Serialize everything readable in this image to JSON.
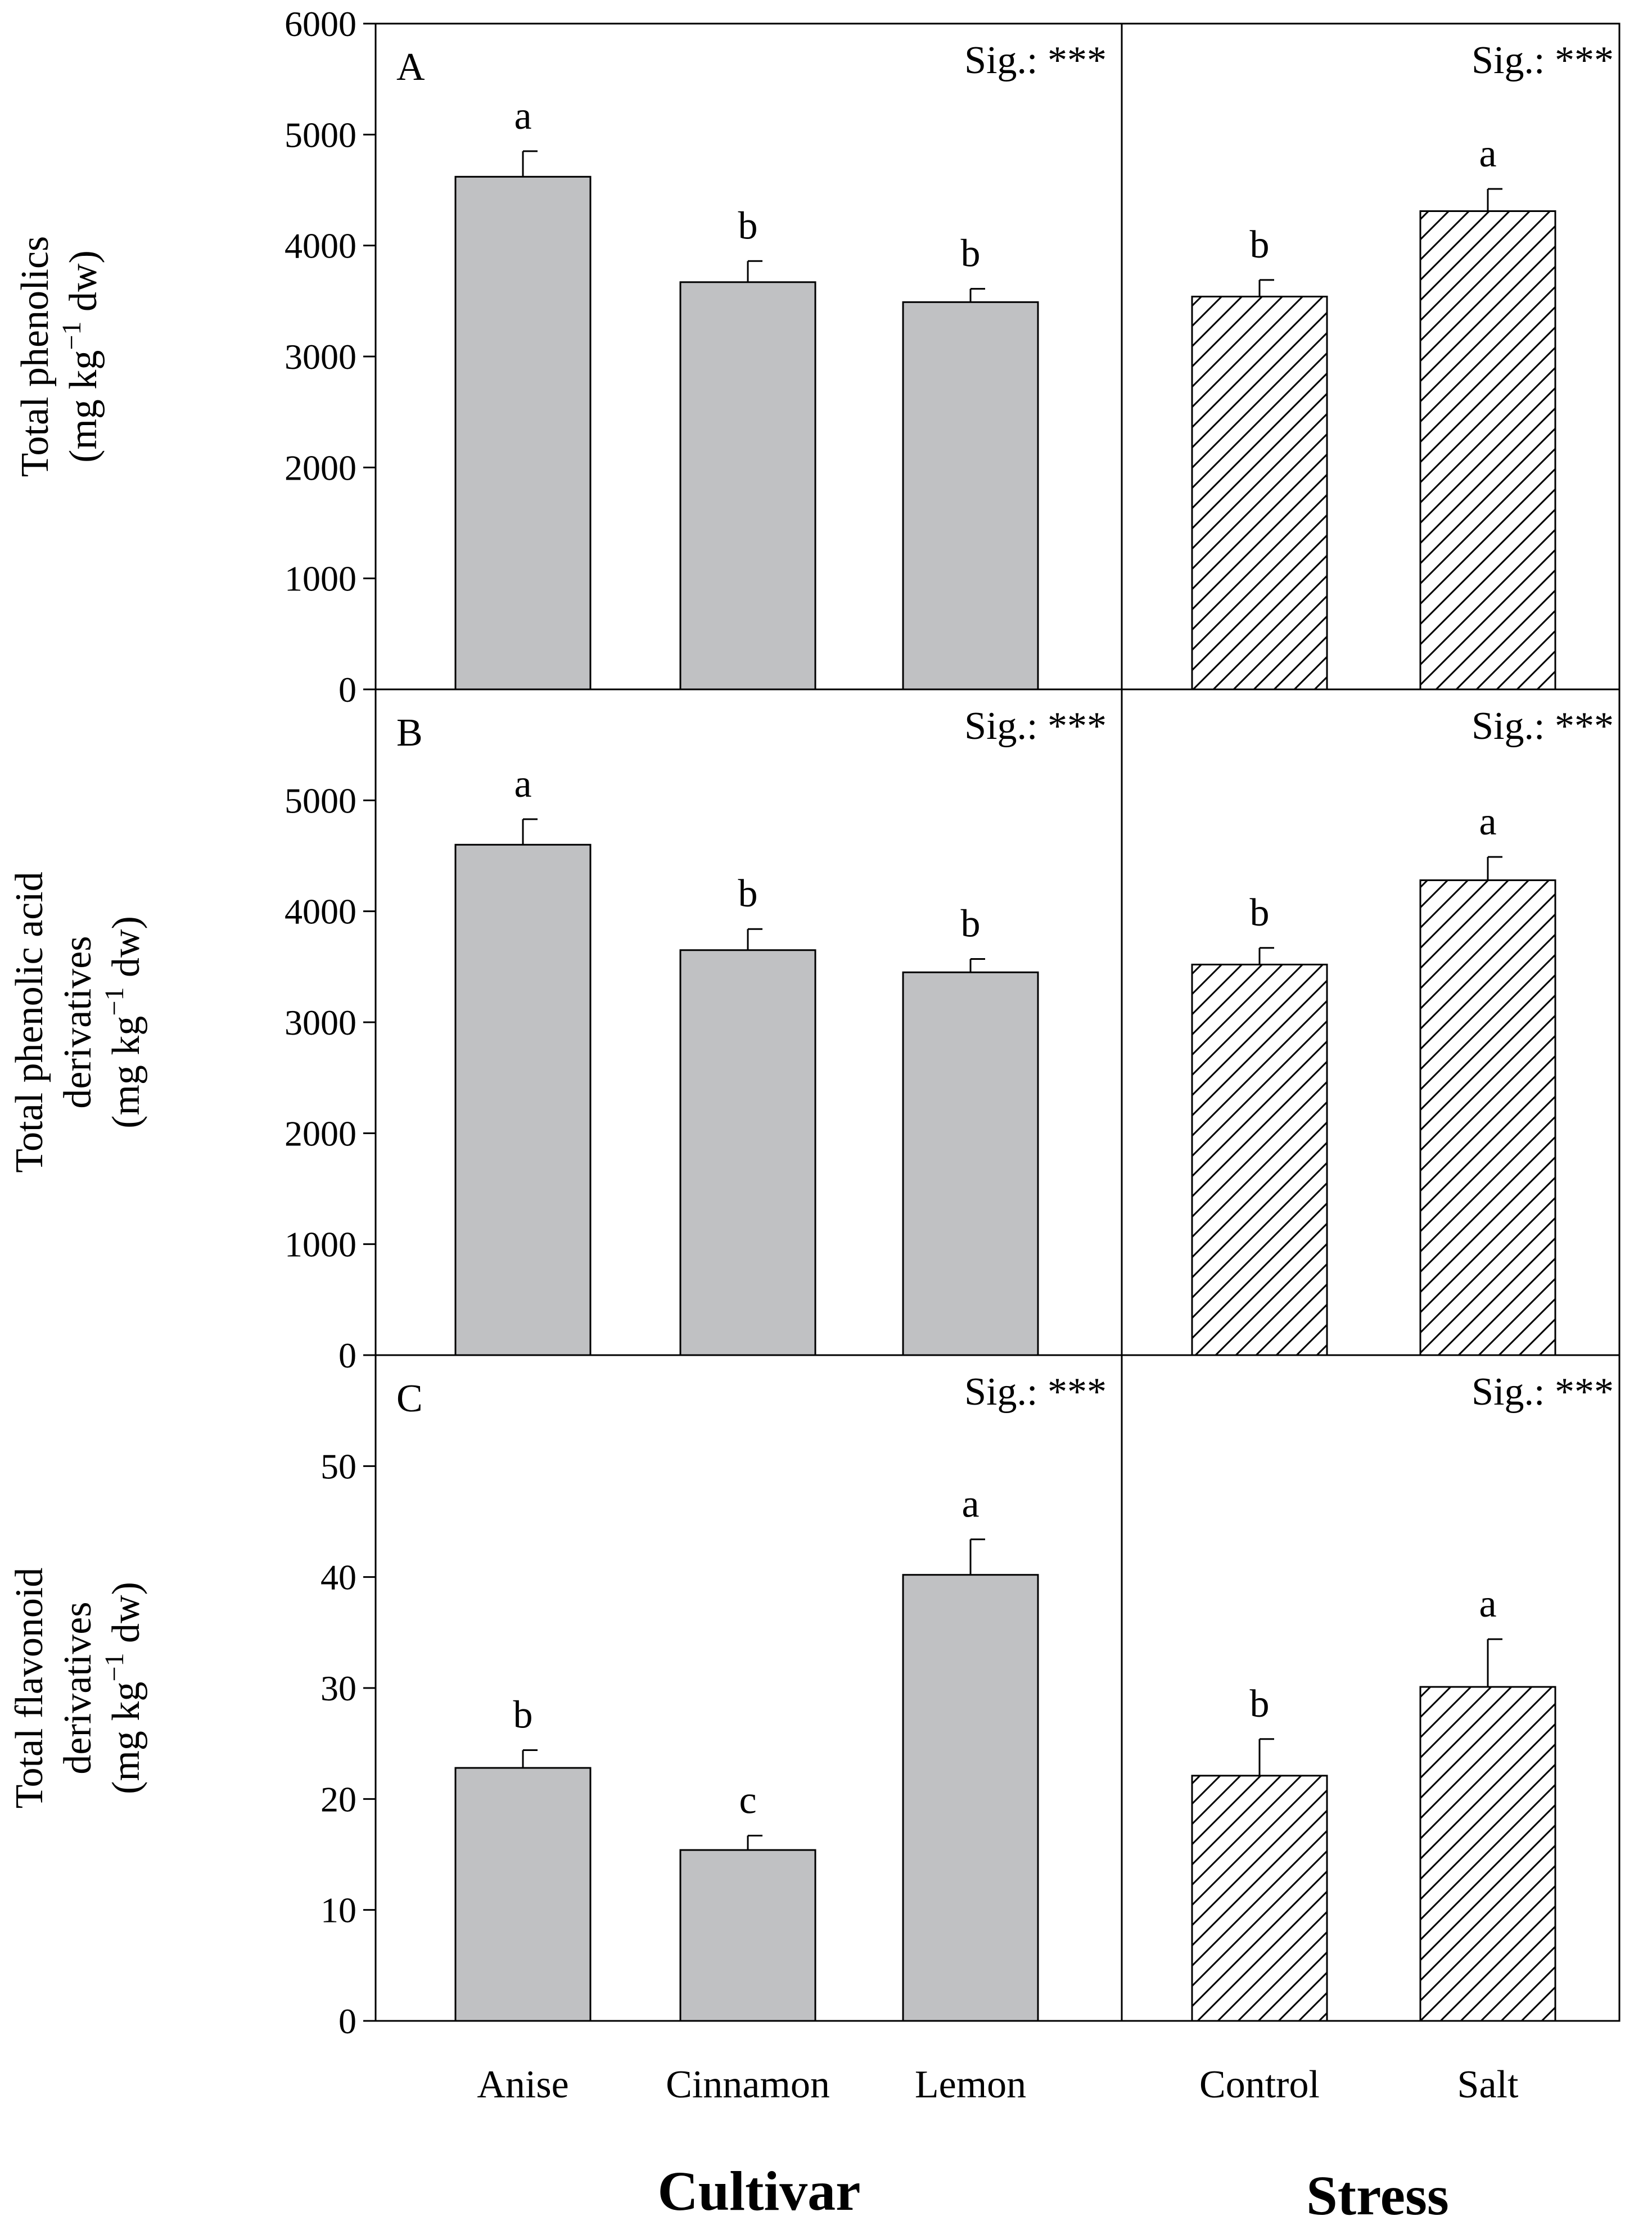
{
  "chart_data": {
    "type": "bar",
    "group_titles": [
      "Cultivar",
      "Stress"
    ],
    "groups": [
      {
        "title": "Cultivar",
        "categories": [
          "Anise",
          "Cinnamon",
          "Lemon"
        ],
        "fill": "solid"
      },
      {
        "title": "Stress",
        "categories": [
          "Control",
          "Salt"
        ],
        "fill": "hatched"
      }
    ],
    "colors": {
      "bar_fill": "#c0c1c3",
      "hatch": "#000000",
      "stroke": "#000000"
    },
    "panels": [
      {
        "label": "A",
        "ylabel": [
          "Total phenolics"
        ],
        "ylabel_units": "(mg kg",
        "ylabel_exp": "−1",
        "ylabel_tail": " dw)",
        "ylim": [
          0,
          6000
        ],
        "yticks": [
          "0",
          "1000",
          "2000",
          "3000",
          "4000",
          "5000",
          "6000"
        ],
        "sig_left": "Sig.: ***",
        "sig_right": "Sig.: ***",
        "cultivar": {
          "values": [
            4620,
            3670,
            3490
          ],
          "errors": [
            230,
            190,
            120
          ],
          "letters": [
            "a",
            "b",
            "b"
          ]
        },
        "stress": {
          "values": [
            3540,
            4310
          ],
          "errors": [
            150,
            200
          ],
          "letters": [
            "b",
            "a"
          ]
        }
      },
      {
        "label": "B",
        "ylabel": [
          "Total phenolic acid",
          "derivatives"
        ],
        "ylabel_units": "(mg kg",
        "ylabel_exp": "−1",
        "ylabel_tail": " dw)",
        "ylim": [
          0,
          6000
        ],
        "yticks": [
          "0",
          "1000",
          "2000",
          "3000",
          "4000",
          "5000"
        ],
        "sig_left": "Sig.: ***",
        "sig_right": "Sig.: ***",
        "cultivar": {
          "values": [
            4600,
            3650,
            3450
          ],
          "errors": [
            230,
            190,
            120
          ],
          "letters": [
            "a",
            "b",
            "b"
          ]
        },
        "stress": {
          "values": [
            3520,
            4280
          ],
          "errors": [
            150,
            210
          ],
          "letters": [
            "b",
            "a"
          ]
        }
      },
      {
        "label": "C",
        "ylabel": [
          "Total flavonoid",
          "derivatives"
        ],
        "ylabel_units": "(mg kg",
        "ylabel_exp": "−1",
        "ylabel_tail": " dw)",
        "ylim": [
          0,
          60
        ],
        "yticks": [
          "0",
          "10",
          "20",
          "30",
          "40",
          "50"
        ],
        "sig_left": "Sig.: ***",
        "sig_right": "Sig.: ***",
        "cultivar": {
          "values": [
            22.8,
            15.4,
            40.2
          ],
          "errors": [
            1.6,
            1.3,
            3.2
          ],
          "letters": [
            "b",
            "c",
            "a"
          ]
        },
        "stress": {
          "values": [
            22.1,
            30.1
          ],
          "errors": [
            3.3,
            4.3
          ],
          "letters": [
            "b",
            "a"
          ]
        }
      }
    ]
  }
}
